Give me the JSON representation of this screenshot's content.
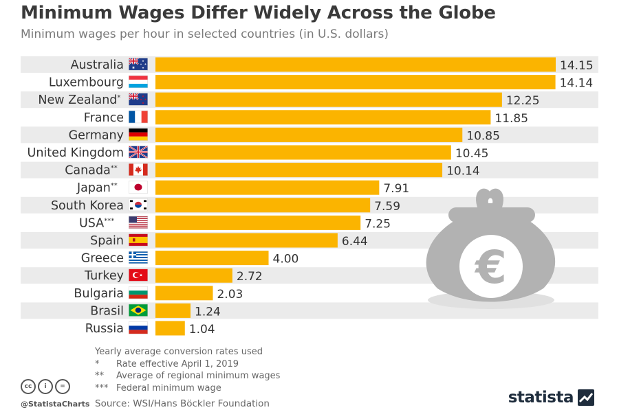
{
  "header": {
    "title": "Minimum Wages Differ Widely Across the Globe",
    "subtitle": "Minimum wages per hour in selected countries (in U.S. dollars)"
  },
  "colors": {
    "bar": "#fbb400",
    "row_stripe": "#ebebeb",
    "icon_gray": "#b2b2b2"
  },
  "chart_data": {
    "type": "bar",
    "orientation": "horizontal",
    "categories": [
      "Australia",
      "Luxembourg",
      "New Zealand*",
      "France",
      "Germany",
      "United Kingdom",
      "Canada**",
      "Japan**",
      "South Korea",
      "USA***",
      "Spain",
      "Greece",
      "Turkey",
      "Bulgaria",
      "Brasil",
      "Russia"
    ],
    "values": [
      14.15,
      14.14,
      12.25,
      11.85,
      10.85,
      10.45,
      10.14,
      7.91,
      7.59,
      7.25,
      6.44,
      4.0,
      2.72,
      2.03,
      1.24,
      1.04
    ],
    "value_labels": [
      "14.15",
      "14.14",
      "12.25",
      "11.85",
      "10.85",
      "10.45",
      "10.14",
      "7.91",
      "7.59",
      "7.25",
      "6.44",
      "4.00",
      "2.72",
      "2.03",
      "1.24",
      "1.04"
    ],
    "countries": [
      {
        "name": "Australia",
        "mark": "",
        "flag": "australia-flag"
      },
      {
        "name": "Luxembourg",
        "mark": "",
        "flag": "luxembourg-flag"
      },
      {
        "name": "New Zealand",
        "mark": "*",
        "flag": "new-zealand-flag"
      },
      {
        "name": "France",
        "mark": "",
        "flag": "france-flag"
      },
      {
        "name": "Germany",
        "mark": "",
        "flag": "germany-flag"
      },
      {
        "name": "United Kingdom",
        "mark": "",
        "flag": "united-kingdom-flag"
      },
      {
        "name": "Canada",
        "mark": "**",
        "flag": "canada-flag"
      },
      {
        "name": "Japan",
        "mark": "**",
        "flag": "japan-flag"
      },
      {
        "name": "South Korea",
        "mark": "",
        "flag": "south-korea-flag"
      },
      {
        "name": "USA",
        "mark": "***",
        "flag": "usa-flag"
      },
      {
        "name": "Spain",
        "mark": "",
        "flag": "spain-flag"
      },
      {
        "name": "Greece",
        "mark": "",
        "flag": "greece-flag"
      },
      {
        "name": "Turkey",
        "mark": "",
        "flag": "turkey-flag"
      },
      {
        "name": "Bulgaria",
        "mark": "",
        "flag": "bulgaria-flag"
      },
      {
        "name": "Brasil",
        "mark": "",
        "flag": "brazil-flag"
      },
      {
        "name": "Russia",
        "mark": "",
        "flag": "russia-flag"
      }
    ],
    "xlim": [
      0,
      14.15
    ],
    "grid": false,
    "legend": "none",
    "illustration": "euro-purse-icon"
  },
  "footer": {
    "notes_intro": "Yearly average conversion rates used",
    "notes": [
      {
        "mark": "*",
        "text": "Rate effective April 1, 2019"
      },
      {
        "mark": "**",
        "text": "Average of regional minimum wages"
      },
      {
        "mark": "***",
        "text": "Federal minimum wage"
      }
    ],
    "source": "Source: WSI/Hans Böckler Foundation",
    "credit": "@StatistaCharts",
    "brand": "statista",
    "license_icons": [
      "cc",
      "i",
      "="
    ]
  }
}
